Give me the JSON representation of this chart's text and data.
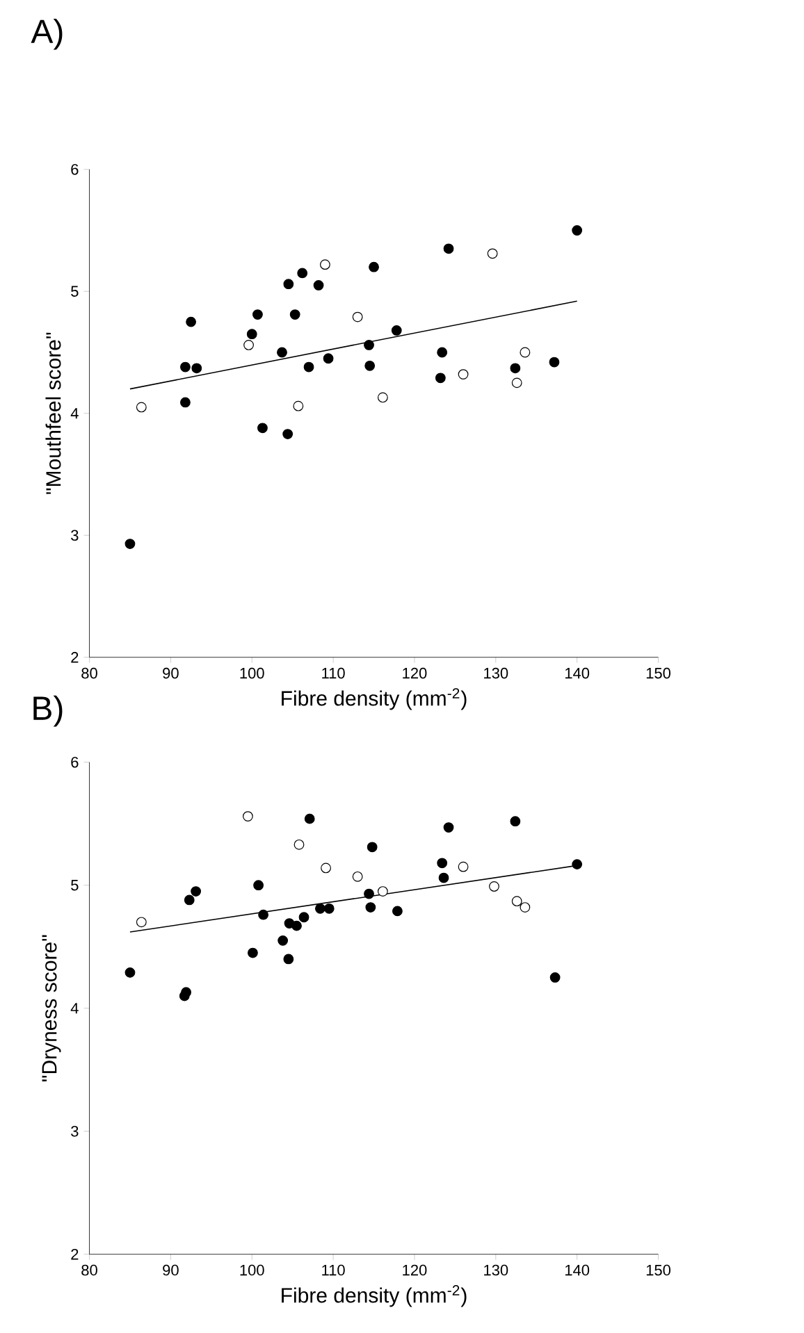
{
  "chart_data": [
    {
      "type": "scatter",
      "marker": "circle",
      "title": "A)",
      "xlabel": "Fibre density (mm$^{-2}$)",
      "ylabel": "\"Mouthfeel score\"",
      "xlim": [
        80,
        150
      ],
      "ylim": [
        2,
        6
      ],
      "xticks": [
        80,
        90,
        100,
        110,
        120,
        130,
        140,
        150
      ],
      "yticks": [
        2,
        3,
        4,
        5,
        6
      ],
      "series": [
        {
          "color": "#000000",
          "x": [
            85,
            91.8,
            91.8,
            92.5,
            93.2,
            100,
            100.7,
            101.3,
            103.7,
            104.4,
            104.5,
            105.3,
            106.2,
            107,
            108.2,
            109.4,
            114.4,
            114.5,
            115,
            117.8,
            123.2,
            123.4,
            124.2,
            132.4,
            137.2,
            140
          ],
          "values": [
            2.93,
            4.38,
            4.09,
            4.75,
            4.37,
            4.65,
            4.81,
            3.88,
            4.5,
            3.83,
            5.06,
            4.81,
            5.15,
            4.38,
            5.05,
            4.45,
            4.56,
            4.39,
            5.2,
            4.68,
            4.29,
            4.5,
            5.35,
            4.37,
            4.42,
            5.5
          ]
        },
        {
          "color": "#ffffff",
          "x": [
            86.4,
            99.6,
            105.7,
            109,
            113,
            116.1,
            126,
            129.6,
            132.6,
            133.6
          ],
          "values": [
            4.05,
            4.56,
            4.06,
            5.22,
            4.79,
            4.13,
            4.32,
            5.31,
            4.25,
            4.5
          ]
        },
        {
          "type": "line",
          "marker": "none",
          "color": "#000000",
          "x": [
            85,
            140
          ],
          "values": [
            4.2,
            4.92
          ]
        }
      ]
    },
    {
      "type": "scatter",
      "marker": "circle",
      "title": "B)",
      "xlabel": "Fibre density (mm$^{-2}$)",
      "ylabel": "\"Dryness score\"",
      "xlim": [
        80,
        150
      ],
      "ylim": [
        2,
        6
      ],
      "xticks": [
        80,
        90,
        100,
        110,
        120,
        130,
        140,
        150
      ],
      "yticks": [
        2,
        3,
        4,
        5,
        6
      ],
      "series": [
        {
          "color": "#000000",
          "x": [
            85,
            91.7,
            91.9,
            92.3,
            93.1,
            100.1,
            100.8,
            101.4,
            103.8,
            104.5,
            104.6,
            105.5,
            106.4,
            107.1,
            108.4,
            109.5,
            114.4,
            114.6,
            114.8,
            117.9,
            123.4,
            123.6,
            124.2,
            132.4,
            137.3,
            140
          ],
          "values": [
            4.29,
            4.1,
            4.13,
            4.88,
            4.95,
            4.45,
            5.0,
            4.76,
            4.55,
            4.4,
            4.69,
            4.67,
            4.74,
            5.54,
            4.81,
            4.81,
            4.93,
            4.82,
            5.31,
            4.79,
            5.18,
            5.06,
            5.47,
            5.52,
            4.25,
            5.17
          ]
        },
        {
          "color": "#ffffff",
          "x": [
            86.4,
            99.5,
            105.8,
            109.1,
            113,
            116.1,
            126,
            129.8,
            132.6,
            133.6
          ],
          "values": [
            4.7,
            5.56,
            5.33,
            5.14,
            5.07,
            4.95,
            5.15,
            4.99,
            4.87,
            4.82
          ]
        },
        {
          "type": "line",
          "marker": "none",
          "color": "#000000",
          "x": [
            85,
            140
          ],
          "values": [
            4.62,
            5.16
          ]
        }
      ]
    }
  ]
}
